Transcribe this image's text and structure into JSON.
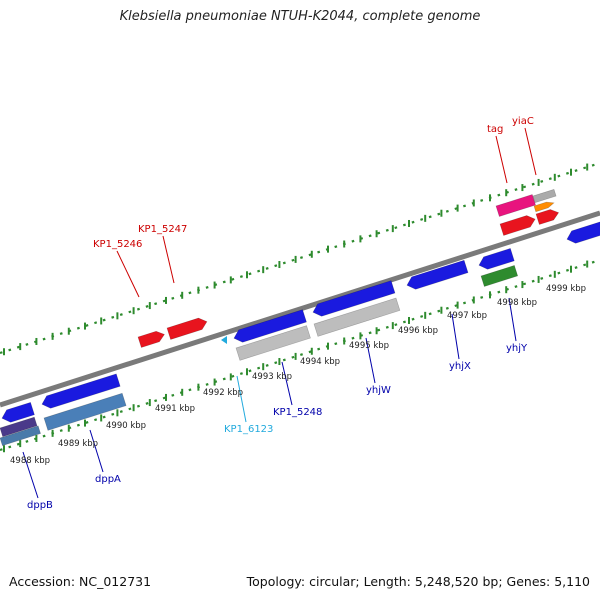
{
  "title": "Klebsiella pneumoniae NTUH-K2044, complete genome",
  "footer": {
    "accession": "Accession: NC_012731",
    "topology": "Topology: circular; Length: 5,248,520 bp; Genes: 5,110"
  },
  "colors": {
    "red_label": "#cc0000",
    "blue_label": "#0000aa",
    "cyan_label": "#22aadd",
    "track_green": "#2e8b2e",
    "backbone": "#7a7a7a"
  },
  "kbp_labels": [
    "4988 kbp",
    "4989 kbp",
    "4990 kbp",
    "4991 kbp",
    "4992 kbp",
    "4993 kbp",
    "4994 kbp",
    "4995 kbp",
    "4996 kbp",
    "4997 kbp",
    "4998 kbp",
    "4999 kbp"
  ],
  "gene_labels_top": [
    "KP1_5246",
    "KP1_5247",
    "tag",
    "yiaC"
  ],
  "gene_labels_bottom": [
    "dppB",
    "dppA",
    "KP1_6123",
    "KP1_5248",
    "yhjW",
    "yhjX",
    "yhjY"
  ]
}
